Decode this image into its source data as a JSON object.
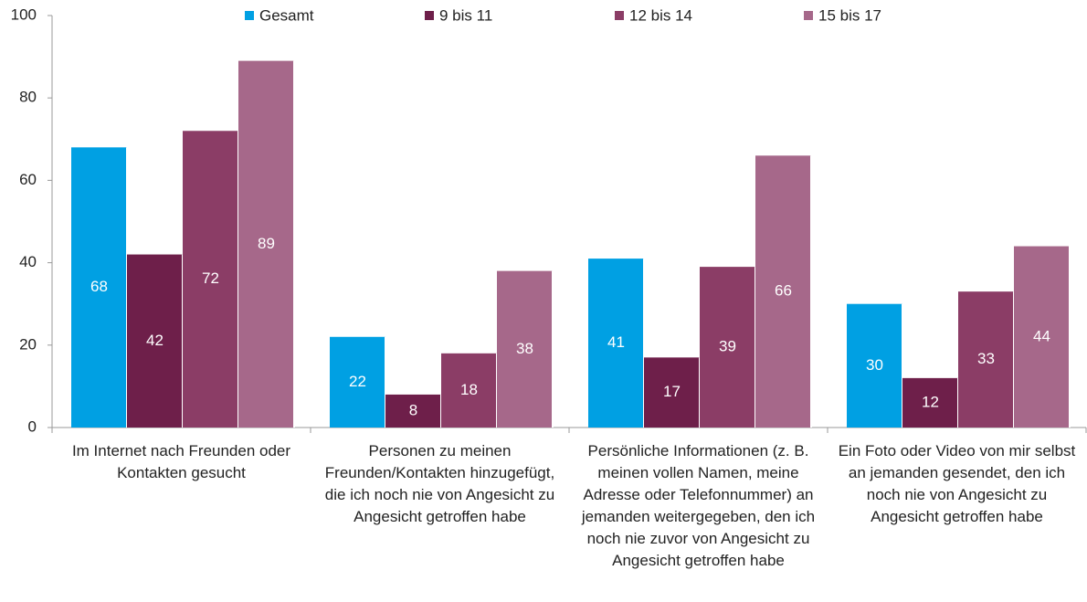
{
  "chart_data": {
    "type": "bar",
    "categories": [
      "Im Internet nach Freunden oder Kontakten gesucht",
      "Personen zu meinen Freunden/Kontakten hinzugefügt, die ich noch nie von Angesicht zu Angesicht getroffen habe",
      "Persönliche Informationen (z. B. meinen vollen Namen, meine Adresse oder Telefonnummer) an jemanden weitergegeben, den ich noch nie zuvor von Angesicht zu Angesicht getroffen habe",
      "Ein Foto oder Video von mir selbst an jemanden gesendet, den ich noch nie von Angesicht zu Angesicht getroffen habe"
    ],
    "series": [
      {
        "name": "Gesamt",
        "color": "#00a0e3",
        "values": [
          68,
          22,
          41,
          30
        ]
      },
      {
        "name": "9 bis 11",
        "color": "#6e1f4a",
        "values": [
          42,
          8,
          17,
          12
        ]
      },
      {
        "name": "12 bis 14",
        "color": "#8b3d66",
        "values": [
          72,
          18,
          39,
          33
        ]
      },
      {
        "name": "15 bis 17",
        "color": "#a6688a",
        "values": [
          89,
          38,
          66,
          44
        ]
      }
    ],
    "ylim": [
      0,
      100
    ],
    "yticks": [
      0,
      20,
      40,
      60,
      80,
      100
    ],
    "grid": false,
    "legend": "top"
  }
}
